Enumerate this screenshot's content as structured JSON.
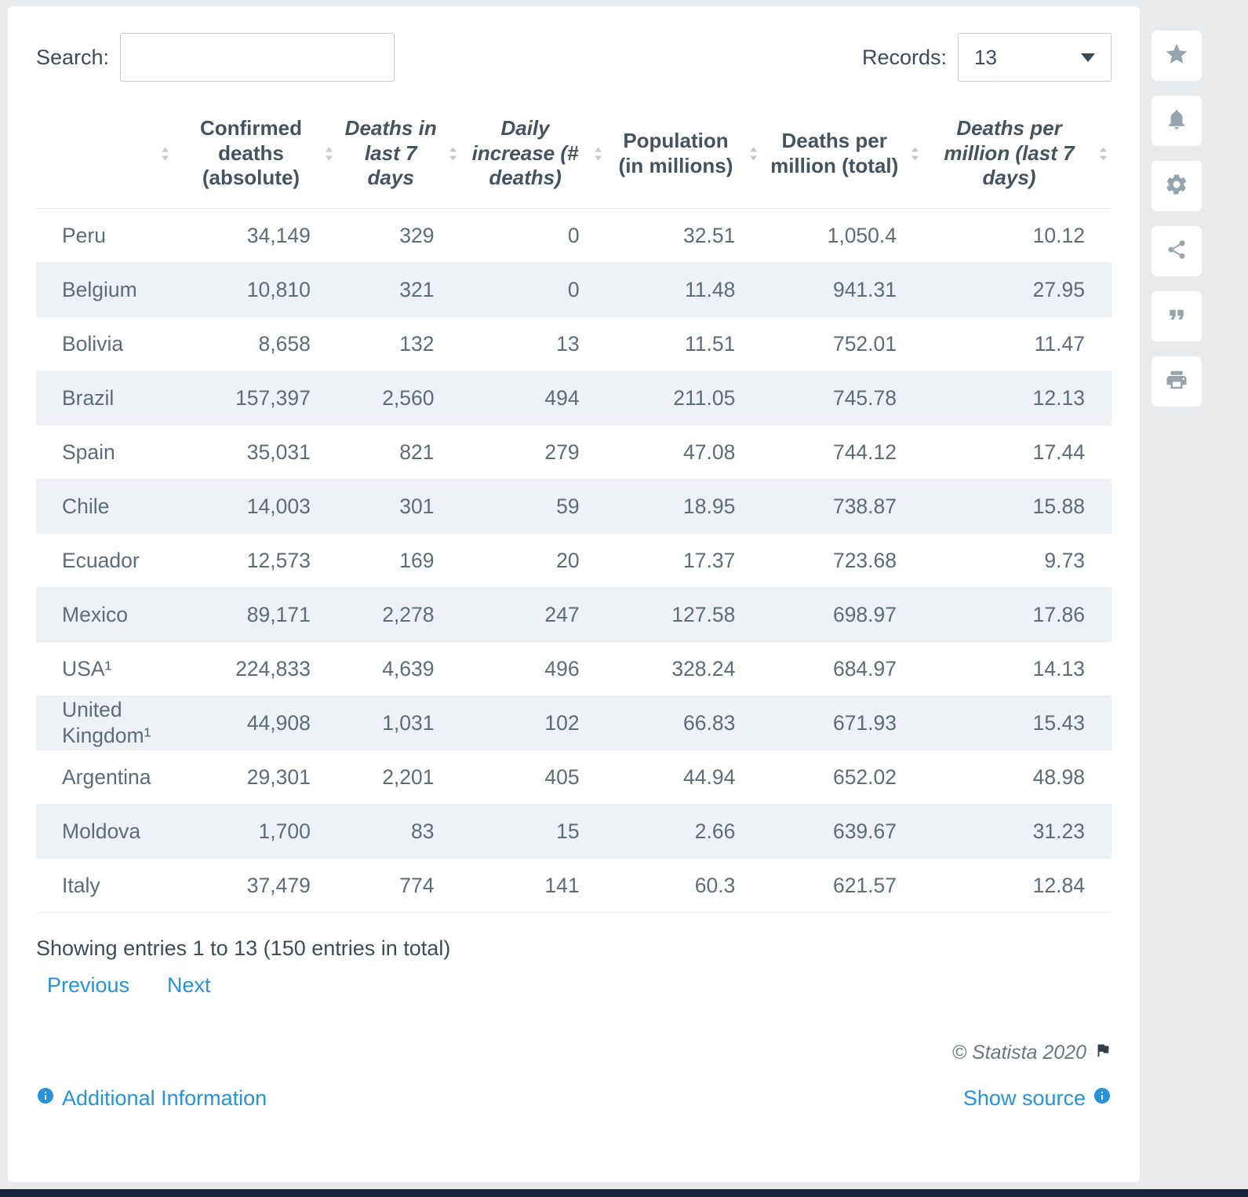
{
  "colors": {
    "link": "#2793d8",
    "row_alt": "#eef2f6",
    "bottom_bar": "#16243d"
  },
  "controls": {
    "search_label": "Search:",
    "search_value": "",
    "records_label": "Records:",
    "records_value": "13"
  },
  "side_toolbar": {
    "icons": [
      "star",
      "bell",
      "gear",
      "share",
      "quote",
      "print"
    ]
  },
  "table": {
    "columns": [
      {
        "key": "country",
        "label": "",
        "italic": false
      },
      {
        "key": "confirmed-deaths-absolute",
        "label": "Confirmed deaths (absolute)",
        "italic": false
      },
      {
        "key": "deaths-in-last-7-days",
        "label": "Deaths in last 7 days",
        "italic": true
      },
      {
        "key": "daily-increase-deaths",
        "label": "Daily increase (# deaths)",
        "italic": true
      },
      {
        "key": "population-in-millions",
        "label": "Population (in millions)",
        "italic": false
      },
      {
        "key": "deaths-per-million-total",
        "label": "Deaths per million (total)",
        "italic": false
      },
      {
        "key": "deaths-per-million-last-7-days",
        "label": "Deaths per million (last 7 days)",
        "italic": true
      }
    ],
    "rows": [
      [
        "Peru",
        "34,149",
        "329",
        "0",
        "32.51",
        "1,050.4",
        "10.12"
      ],
      [
        "Belgium",
        "10,810",
        "321",
        "0",
        "11.48",
        "941.31",
        "27.95"
      ],
      [
        "Bolivia",
        "8,658",
        "132",
        "13",
        "11.51",
        "752.01",
        "11.47"
      ],
      [
        "Brazil",
        "157,397",
        "2,560",
        "494",
        "211.05",
        "745.78",
        "12.13"
      ],
      [
        "Spain",
        "35,031",
        "821",
        "279",
        "47.08",
        "744.12",
        "17.44"
      ],
      [
        "Chile",
        "14,003",
        "301",
        "59",
        "18.95",
        "738.87",
        "15.88"
      ],
      [
        "Ecuador",
        "12,573",
        "169",
        "20",
        "17.37",
        "723.68",
        "9.73"
      ],
      [
        "Mexico",
        "89,171",
        "2,278",
        "247",
        "127.58",
        "698.97",
        "17.86"
      ],
      [
        "USA¹",
        "224,833",
        "4,639",
        "496",
        "328.24",
        "684.97",
        "14.13"
      ],
      [
        "United Kingdom¹",
        "44,908",
        "1,031",
        "102",
        "66.83",
        "671.93",
        "15.43"
      ],
      [
        "Argentina",
        "29,301",
        "2,201",
        "405",
        "44.94",
        "652.02",
        "48.98"
      ],
      [
        "Moldova",
        "1,700",
        "83",
        "15",
        "2.66",
        "639.67",
        "31.23"
      ],
      [
        "Italy",
        "37,479",
        "774",
        "141",
        "60.3",
        "621.57",
        "12.84"
      ]
    ]
  },
  "footer": {
    "showing_text": "Showing entries 1 to 13 (150 entries in total)",
    "previous_label": "Previous",
    "next_label": "Next",
    "copyright": "© Statista 2020",
    "additional_information_label": "Additional Information",
    "show_source_label": "Show source"
  }
}
